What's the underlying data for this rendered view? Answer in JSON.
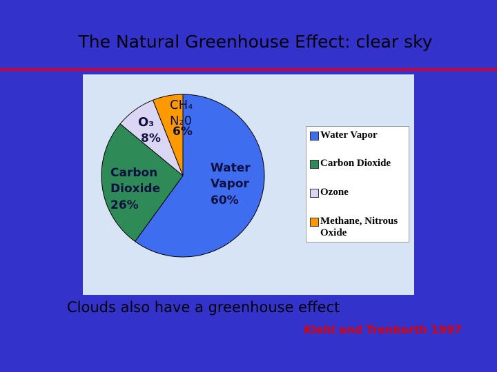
{
  "chart_data": {
    "type": "pie",
    "title": "The Natural Greenhouse Effect: clear sky",
    "categories": [
      "Water Vapor",
      "Carbon Dioxide",
      "Ozone",
      "Methane, Nitrous Oxide"
    ],
    "slice_labels": [
      "Water Vapor",
      "Carbon Dioxide",
      "O₃",
      "CH₄ N₂0"
    ],
    "values": [
      60,
      26,
      8,
      6
    ],
    "value_labels": [
      "60%",
      "26%",
      "8%",
      "6%"
    ],
    "colors": [
      "#3e6df0",
      "#2e8b57",
      "#dcd6f5",
      "#ff9900"
    ],
    "legend": "right"
  },
  "slide": {
    "caption": "Clouds also have a greenhouse effect",
    "citation": "Kiehl and Trenberth 1997"
  }
}
